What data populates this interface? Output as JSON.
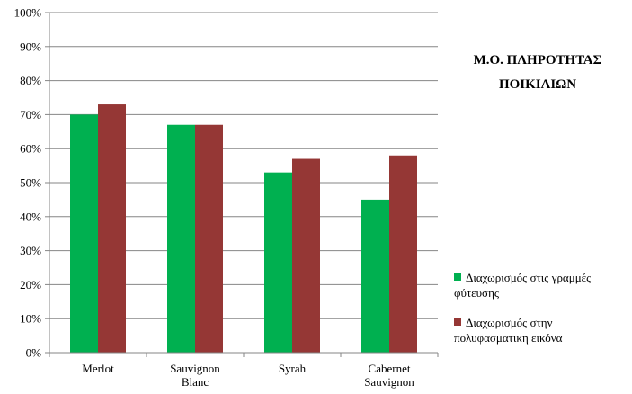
{
  "chart_data": {
    "type": "bar",
    "title": [
      "Μ.Ο. ΠΛΗΡΟΤΗΤΑΣ",
      "ΠΟΙΚΙΛΙΩΝ"
    ],
    "categories": [
      [
        "Merlot"
      ],
      [
        "Sauvignon",
        "Blanc"
      ],
      [
        "Syrah"
      ],
      [
        "Cabernet",
        "Sauvignon"
      ]
    ],
    "series": [
      {
        "name": [
          "Διαχωρισμός στις γραμμές",
          "φύτευσης"
        ],
        "color": "#00b050",
        "values": [
          0.7,
          0.67,
          0.53,
          0.45
        ]
      },
      {
        "name": [
          "Διαχωρισμός στην",
          "πολυφασματικη εικόνα"
        ],
        "color": "#953735",
        "values": [
          0.73,
          0.67,
          0.57,
          0.58
        ]
      }
    ],
    "ylim": [
      0,
      1
    ],
    "yticks": [
      "0%",
      "10%",
      "20%",
      "30%",
      "40%",
      "50%",
      "60%",
      "70%",
      "80%",
      "90%",
      "100%"
    ],
    "grid": true,
    "legend_position": "right"
  }
}
